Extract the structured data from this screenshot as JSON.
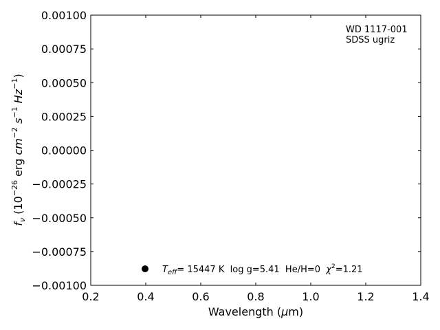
{
  "chart_data": {
    "type": "scatter",
    "title": "",
    "xlabel": "Wavelength (μm)",
    "ylabel": "fν (10⁻²⁶ erg cm⁻² s⁻¹ Hz⁻¹)",
    "xlim": [
      0.2,
      1.4
    ],
    "ylim": [
      -0.001,
      0.001
    ],
    "x_ticks": [
      0.2,
      0.4,
      0.6,
      0.8,
      1.0,
      1.2,
      1.4
    ],
    "x_tick_labels": [
      "0.2",
      "0.4",
      "0.6",
      "0.8",
      "1.0",
      "1.2",
      "1.4"
    ],
    "y_ticks": [
      -0.001,
      -0.00075,
      -0.0005,
      -0.00025,
      0.0,
      0.00025,
      0.0005,
      0.00075,
      0.001
    ],
    "y_tick_labels": [
      "−0.00100",
      "−0.00075",
      "−0.00050",
      "−0.00025",
      "0.00000",
      "0.00025",
      "0.00050",
      "0.00075",
      "0.00100"
    ],
    "grid": false,
    "annotation_lines": [
      "WD 1117-001",
      "SDSS ugriz"
    ],
    "legend": {
      "placement": "lower-center",
      "entries": [
        {
          "label_parts": {
            "t_main": "T",
            "t_sub": "eff",
            "after_t": "= 15447 K  log g=5.41  He/H=0  ",
            "chi": "χ",
            "chi_sup": "2",
            "after_chi": "=1.21"
          }
        }
      ]
    },
    "series": [
      {
        "color": "#000000",
        "marker": "circle",
        "x": [],
        "y": []
      }
    ]
  }
}
